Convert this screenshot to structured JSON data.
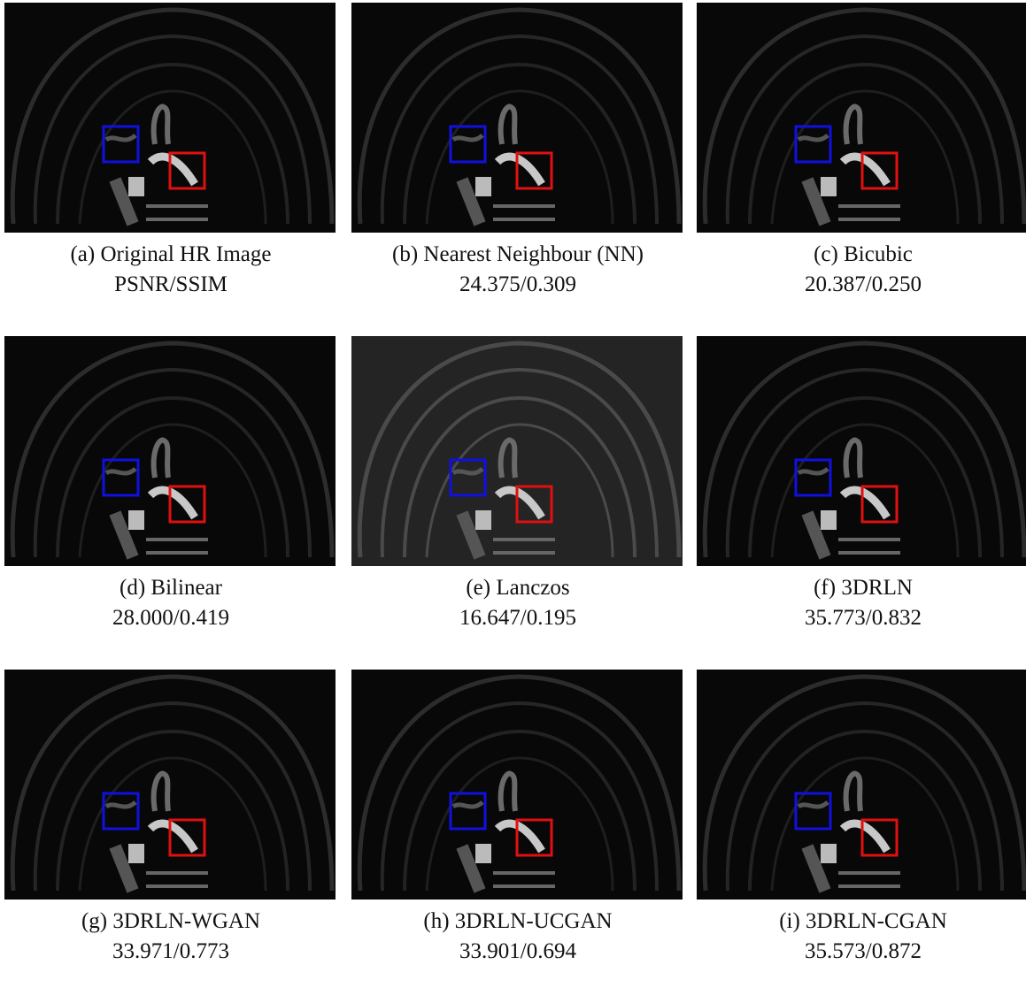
{
  "panels": [
    {
      "label": "(a) Original HR Image",
      "metrics": "PSNR/SSIM"
    },
    {
      "label": "(b) Nearest Neighbour (NN)",
      "metrics": "24.375/0.309"
    },
    {
      "label": "(c) Bicubic",
      "metrics": "20.387/0.250"
    },
    {
      "label": "(d) Bilinear",
      "metrics": "28.000/0.419"
    },
    {
      "label": "(e) Lanczos",
      "metrics": "16.647/0.195"
    },
    {
      "label": "(f) 3DRLN",
      "metrics": "35.773/0.832"
    },
    {
      "label": "(g) 3DRLN-WGAN",
      "metrics": "33.971/0.773"
    },
    {
      "label": "(h) 3DRLN-UCGAN",
      "metrics": "33.901/0.694"
    },
    {
      "label": "(i) 3DRLN-CGAN",
      "metrics": "35.573/0.872"
    }
  ]
}
